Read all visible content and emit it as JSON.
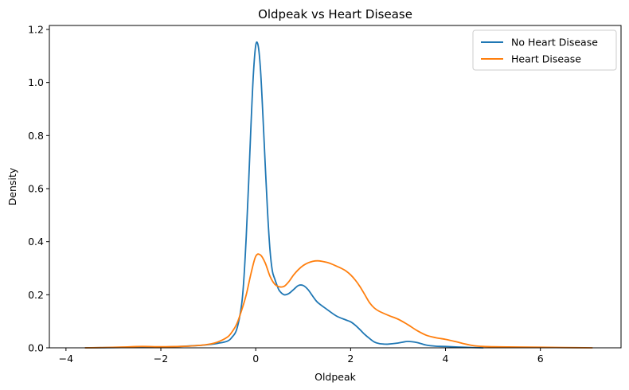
{
  "chart_data": {
    "type": "line",
    "title": "Oldpeak vs Heart Disease",
    "xlabel": "Oldpeak",
    "ylabel": "Density",
    "xlim": [
      -4.35,
      7.7
    ],
    "ylim": [
      0,
      1.215
    ],
    "xticks": [
      -4,
      -2,
      0,
      2,
      4,
      6
    ],
    "yticks": [
      0.0,
      0.2,
      0.4,
      0.6,
      0.8,
      1.0,
      1.2
    ],
    "grid": false,
    "legend_position": "top-right",
    "series": [
      {
        "name": "No Heart Disease",
        "color": "#1f77b4",
        "x": [
          -3.6,
          -3.0,
          -2.5,
          -2.0,
          -1.5,
          -1.2,
          -1.0,
          -0.8,
          -0.6,
          -0.5,
          -0.4,
          -0.3,
          -0.25,
          -0.2,
          -0.15,
          -0.1,
          -0.05,
          0.0,
          0.05,
          0.1,
          0.15,
          0.2,
          0.25,
          0.3,
          0.35,
          0.4,
          0.45,
          0.5,
          0.6,
          0.7,
          0.8,
          0.9,
          1.0,
          1.1,
          1.2,
          1.3,
          1.5,
          1.7,
          1.9,
          2.0,
          2.1,
          2.2,
          2.3,
          2.4,
          2.5,
          2.6,
          2.7,
          2.8,
          3.0,
          3.2,
          3.4,
          3.6,
          3.8,
          4.0,
          4.4,
          4.8
        ],
        "y": [
          0.0,
          0.001,
          0.002,
          0.003,
          0.006,
          0.009,
          0.012,
          0.017,
          0.025,
          0.04,
          0.07,
          0.16,
          0.26,
          0.42,
          0.62,
          0.84,
          1.03,
          1.14,
          1.14,
          1.05,
          0.88,
          0.69,
          0.51,
          0.37,
          0.29,
          0.26,
          0.235,
          0.215,
          0.2,
          0.205,
          0.22,
          0.235,
          0.235,
          0.22,
          0.195,
          0.172,
          0.145,
          0.12,
          0.105,
          0.098,
          0.085,
          0.068,
          0.05,
          0.035,
          0.022,
          0.016,
          0.014,
          0.014,
          0.018,
          0.024,
          0.02,
          0.01,
          0.006,
          0.005,
          0.002,
          0.0
        ]
      },
      {
        "name": "Heart Disease",
        "color": "#ff7f0e",
        "x": [
          -3.6,
          -3.2,
          -2.8,
          -2.4,
          -2.0,
          -1.6,
          -1.2,
          -1.0,
          -0.8,
          -0.6,
          -0.5,
          -0.4,
          -0.3,
          -0.2,
          -0.1,
          0.0,
          0.1,
          0.2,
          0.3,
          0.4,
          0.5,
          0.6,
          0.7,
          0.8,
          0.9,
          1.0,
          1.1,
          1.2,
          1.3,
          1.4,
          1.5,
          1.6,
          1.7,
          1.8,
          1.9,
          2.0,
          2.1,
          2.2,
          2.3,
          2.4,
          2.5,
          2.6,
          2.8,
          3.0,
          3.2,
          3.4,
          3.6,
          3.8,
          4.0,
          4.2,
          4.4,
          4.6,
          4.8,
          5.0,
          5.5,
          6.0,
          6.5,
          7.1
        ],
        "y": [
          0.0,
          0.001,
          0.003,
          0.005,
          0.004,
          0.005,
          0.009,
          0.013,
          0.022,
          0.04,
          0.06,
          0.09,
          0.14,
          0.2,
          0.28,
          0.345,
          0.35,
          0.32,
          0.27,
          0.24,
          0.23,
          0.232,
          0.25,
          0.275,
          0.295,
          0.31,
          0.32,
          0.326,
          0.328,
          0.326,
          0.322,
          0.316,
          0.308,
          0.3,
          0.29,
          0.275,
          0.255,
          0.23,
          0.2,
          0.17,
          0.15,
          0.138,
          0.122,
          0.108,
          0.088,
          0.065,
          0.047,
          0.038,
          0.032,
          0.024,
          0.015,
          0.008,
          0.005,
          0.004,
          0.003,
          0.002,
          0.001,
          0.0
        ]
      }
    ]
  }
}
